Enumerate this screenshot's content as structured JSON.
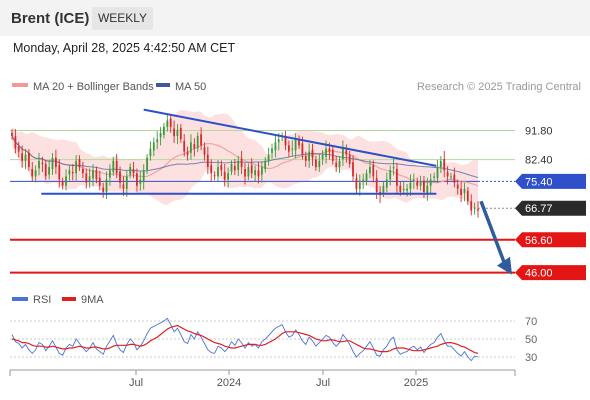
{
  "header": {
    "instrument": "Brent (ICE)",
    "timeframe_button": "WEEKLY",
    "timestamp": "Monday, April 28, 2025 4:42:50 AM CET"
  },
  "legend": {
    "ma20_bb": {
      "label": "MA 20 + Bollinger Bands",
      "color": "#f29a9a"
    },
    "ma50": {
      "label": "MA 50",
      "color": "#3f5a99"
    },
    "credit": "Research © 2025 Trading Central"
  },
  "lower_legend": {
    "rsi": {
      "label": "RSI",
      "color": "#4a72d9"
    },
    "ma9": {
      "label": "9MA",
      "color": "#e02020"
    }
  },
  "colors": {
    "bull": "#3a9a3a",
    "bear": "#d42a2a",
    "resistance": "#2e50c8",
    "support": "#e41515",
    "current_price": "#2b2b2b",
    "target_arrow": "#2f5d9c",
    "band_fill": "#fde1e1",
    "ma20": "#f2a3a3",
    "ma50": "#3f5a99",
    "level_green": "#b4d89a"
  },
  "chart_data": [
    {
      "type": "candlestick",
      "title": "",
      "x_tick_labels": [
        "Jul",
        "2024",
        "Jul",
        "2025"
      ],
      "y_tick_labels": [
        "91.80",
        "82.40",
        "75.40",
        "66.77",
        "56.60",
        "46.00"
      ],
      "y_range": [
        43,
        100
      ],
      "levels": [
        {
          "label": "91.80",
          "value": 91.8,
          "kind": "resistance-green"
        },
        {
          "label": "82.40",
          "value": 82.4,
          "kind": "resistance-green"
        },
        {
          "label": "75.40",
          "value": 75.4,
          "kind": "pivot-blue"
        },
        {
          "label": "66.77",
          "value": 66.77,
          "kind": "last-price"
        },
        {
          "label": "56.60",
          "value": 56.6,
          "kind": "support-red"
        },
        {
          "label": "46.00",
          "value": 46.0,
          "kind": "support-red"
        }
      ],
      "trendlines": [
        {
          "name": "descending resistance",
          "from": [
            "2023-08",
            98.5
          ],
          "to": [
            "2025-04",
            80.4
          ]
        },
        {
          "name": "horizontal support",
          "from": [
            "2023-01",
            71.4
          ],
          "to": [
            "2025-04",
            71.4
          ]
        }
      ],
      "target_arrow": {
        "from": [
          "2025-04",
          69.0
        ],
        "to": [
          "2025-06",
          46.0
        ]
      },
      "ohlc_weekly_close": [
        90,
        86,
        85,
        82,
        84,
        80,
        77,
        79,
        82,
        81,
        77,
        80,
        83,
        80,
        76,
        74,
        77,
        79,
        78,
        82,
        80,
        78,
        75,
        77,
        79,
        76,
        74,
        72,
        76,
        79,
        82,
        78,
        75,
        73,
        77,
        80,
        78,
        74,
        76,
        79,
        83,
        86,
        88,
        89,
        91,
        93,
        95,
        93,
        90,
        92,
        89,
        85,
        84,
        88,
        86,
        90,
        87,
        84,
        80,
        78,
        77,
        80,
        79,
        76,
        78,
        81,
        79,
        82,
        80,
        77,
        80,
        78,
        79,
        77,
        80,
        82,
        84,
        86,
        88,
        89,
        90,
        87,
        85,
        86,
        89,
        87,
        84,
        82,
        85,
        83,
        80,
        82,
        84,
        86,
        85,
        82,
        80,
        82,
        86,
        84,
        81,
        77,
        73,
        75,
        76,
        78,
        80,
        77,
        72,
        71,
        74,
        76,
        79,
        80,
        74,
        72,
        73,
        73,
        75,
        76,
        74,
        75,
        72,
        74,
        76,
        77,
        80,
        82,
        79,
        77,
        77,
        75,
        73,
        71,
        73,
        69,
        66,
        67,
        66
      ],
      "indicators": {
        "MA20": "pink line overlay",
        "Bollinger Bands": "pink shaded band",
        "MA50": "blue line overlay"
      }
    },
    {
      "type": "line",
      "title": "",
      "series": [
        {
          "name": "RSI",
          "values": [
            55,
            47,
            45,
            40,
            44,
            38,
            34,
            38,
            46,
            44,
            37,
            42,
            48,
            41,
            34,
            32,
            40,
            44,
            42,
            50,
            45,
            40,
            36,
            40,
            46,
            39,
            36,
            33,
            42,
            48,
            54,
            44,
            38,
            35,
            44,
            50,
            46,
            38,
            42,
            48,
            56,
            62,
            64,
            66,
            68,
            70,
            73,
            66,
            58,
            62,
            55,
            47,
            45,
            55,
            50,
            58,
            52,
            45,
            38,
            35,
            34,
            42,
            40,
            36,
            40,
            47,
            43,
            50,
            46,
            40,
            46,
            42,
            44,
            40,
            47,
            50,
            54,
            58,
            62,
            64,
            66,
            58,
            52,
            54,
            60,
            55,
            48,
            44,
            52,
            48,
            42,
            46,
            50,
            54,
            52,
            46,
            42,
            46,
            55,
            50,
            44,
            36,
            30,
            34,
            37,
            42,
            47,
            40,
            32,
            31,
            38,
            42,
            49,
            52,
            38,
            33,
            35,
            36,
            40,
            42,
            38,
            41,
            35,
            40,
            44,
            46,
            52,
            56,
            48,
            42,
            42,
            38,
            34,
            31,
            36,
            30,
            26,
            31,
            30
          ]
        },
        {
          "name": "9MA",
          "values": [
            50,
            49,
            48,
            46,
            46,
            45,
            43,
            42,
            42,
            42,
            41,
            41,
            42,
            41,
            40,
            39,
            39,
            40,
            40,
            41,
            42,
            41,
            40,
            40,
            41,
            41,
            40,
            39,
            39,
            40,
            42,
            43,
            43,
            43,
            43,
            44,
            44,
            43,
            42,
            43,
            45,
            48,
            50,
            52,
            55,
            58,
            61,
            63,
            64,
            65,
            63,
            61,
            59,
            58,
            56,
            55,
            54,
            52,
            50,
            48,
            46,
            45,
            44,
            42,
            41,
            40,
            40,
            41,
            42,
            43,
            44,
            44,
            44,
            43,
            43,
            44,
            46,
            48,
            50,
            53,
            56,
            58,
            58,
            58,
            58,
            57,
            56,
            55,
            54,
            52,
            50,
            49,
            48,
            48,
            49,
            49,
            48,
            47,
            47,
            48,
            48,
            46,
            44,
            42,
            40,
            39,
            39,
            38,
            37,
            36,
            36,
            36,
            37,
            39,
            40,
            40,
            40,
            39,
            38,
            37,
            37,
            37,
            38,
            39,
            40,
            41,
            42,
            44,
            45,
            46,
            46,
            45,
            44,
            42,
            41,
            39,
            37,
            35,
            34
          ]
        }
      ],
      "y_tick_labels": [
        "70",
        "50",
        "30"
      ],
      "y_range": [
        20,
        80
      ]
    }
  ]
}
